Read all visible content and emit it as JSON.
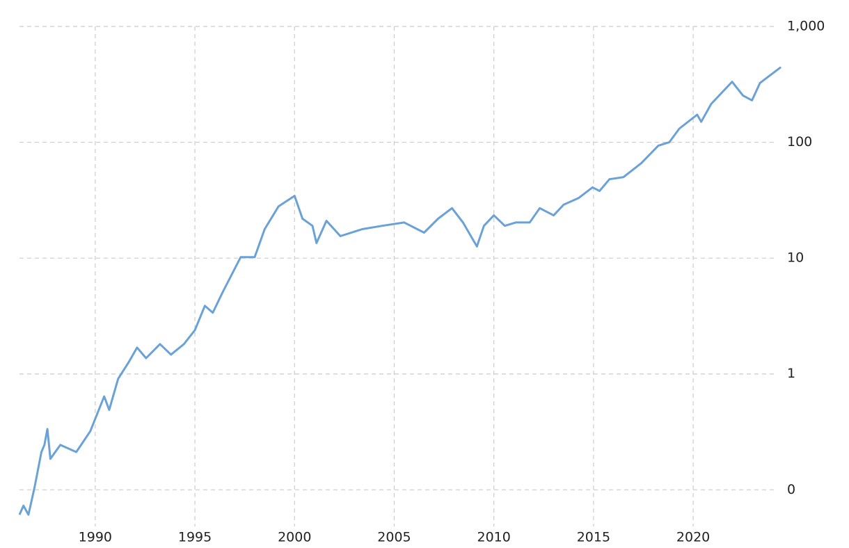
{
  "chart_data": {
    "type": "line",
    "log_scale_y": true,
    "grid": true,
    "xlim": [
      1986.2,
      2024.5
    ],
    "xticks": [
      1990,
      1995,
      2000,
      2005,
      2010,
      2015,
      2020
    ],
    "ylim": [
      0.057,
      1000
    ],
    "yticks": [
      {
        "value": 0.1,
        "label": "0"
      },
      1,
      10,
      100,
      {
        "value": 1000,
        "label": "1,000"
      }
    ],
    "series": [
      {
        "color": "#6aa2d8",
        "x": [
          1986.2,
          1986.4,
          1986.65,
          1986.96,
          1987.3,
          1987.45,
          1987.6,
          1987.75,
          1988.25,
          1989.05,
          1989.75,
          1990.45,
          1990.7,
          1991.15,
          1991.7,
          1992.1,
          1992.55,
          1993.25,
          1993.8,
          1994.45,
          1995.0,
          1995.5,
          1995.9,
          1996.4,
          1997.3,
          1998.0,
          1998.5,
          1999.2,
          2000.0,
          2000.4,
          2000.9,
          2001.1,
          2001.6,
          2002.3,
          2003.4,
          2004.4,
          2005.5,
          2006.5,
          2007.2,
          2007.9,
          2008.45,
          2009.15,
          2009.5,
          2010.0,
          2010.55,
          2011.1,
          2011.8,
          2012.3,
          2013.0,
          2013.5,
          2014.25,
          2014.95,
          2015.3,
          2015.8,
          2016.5,
          2017.4,
          2018.25,
          2018.8,
          2019.3,
          2020.2,
          2020.4,
          2020.9,
          2021.95,
          2022.5,
          2022.95,
          2023.35,
          2024.4
        ],
        "values": [
          0.061,
          0.073,
          0.061,
          0.106,
          0.212,
          0.244,
          0.335,
          0.185,
          0.244,
          0.212,
          0.32,
          0.64,
          0.49,
          0.91,
          1.28,
          1.69,
          1.37,
          1.81,
          1.47,
          1.81,
          2.39,
          3.88,
          3.38,
          5.11,
          10.2,
          10.2,
          17.8,
          28,
          34.5,
          21.9,
          19.0,
          13.5,
          21,
          15.5,
          17.8,
          19.0,
          20.3,
          16.6,
          21.9,
          27,
          20.3,
          12.6,
          19,
          23.4,
          19,
          20.3,
          20.3,
          27,
          23.4,
          28.9,
          33,
          40.8,
          38,
          48,
          50,
          66,
          93.6,
          100,
          131,
          173,
          150,
          214,
          333,
          253,
          230,
          325,
          445
        ]
      }
    ]
  }
}
